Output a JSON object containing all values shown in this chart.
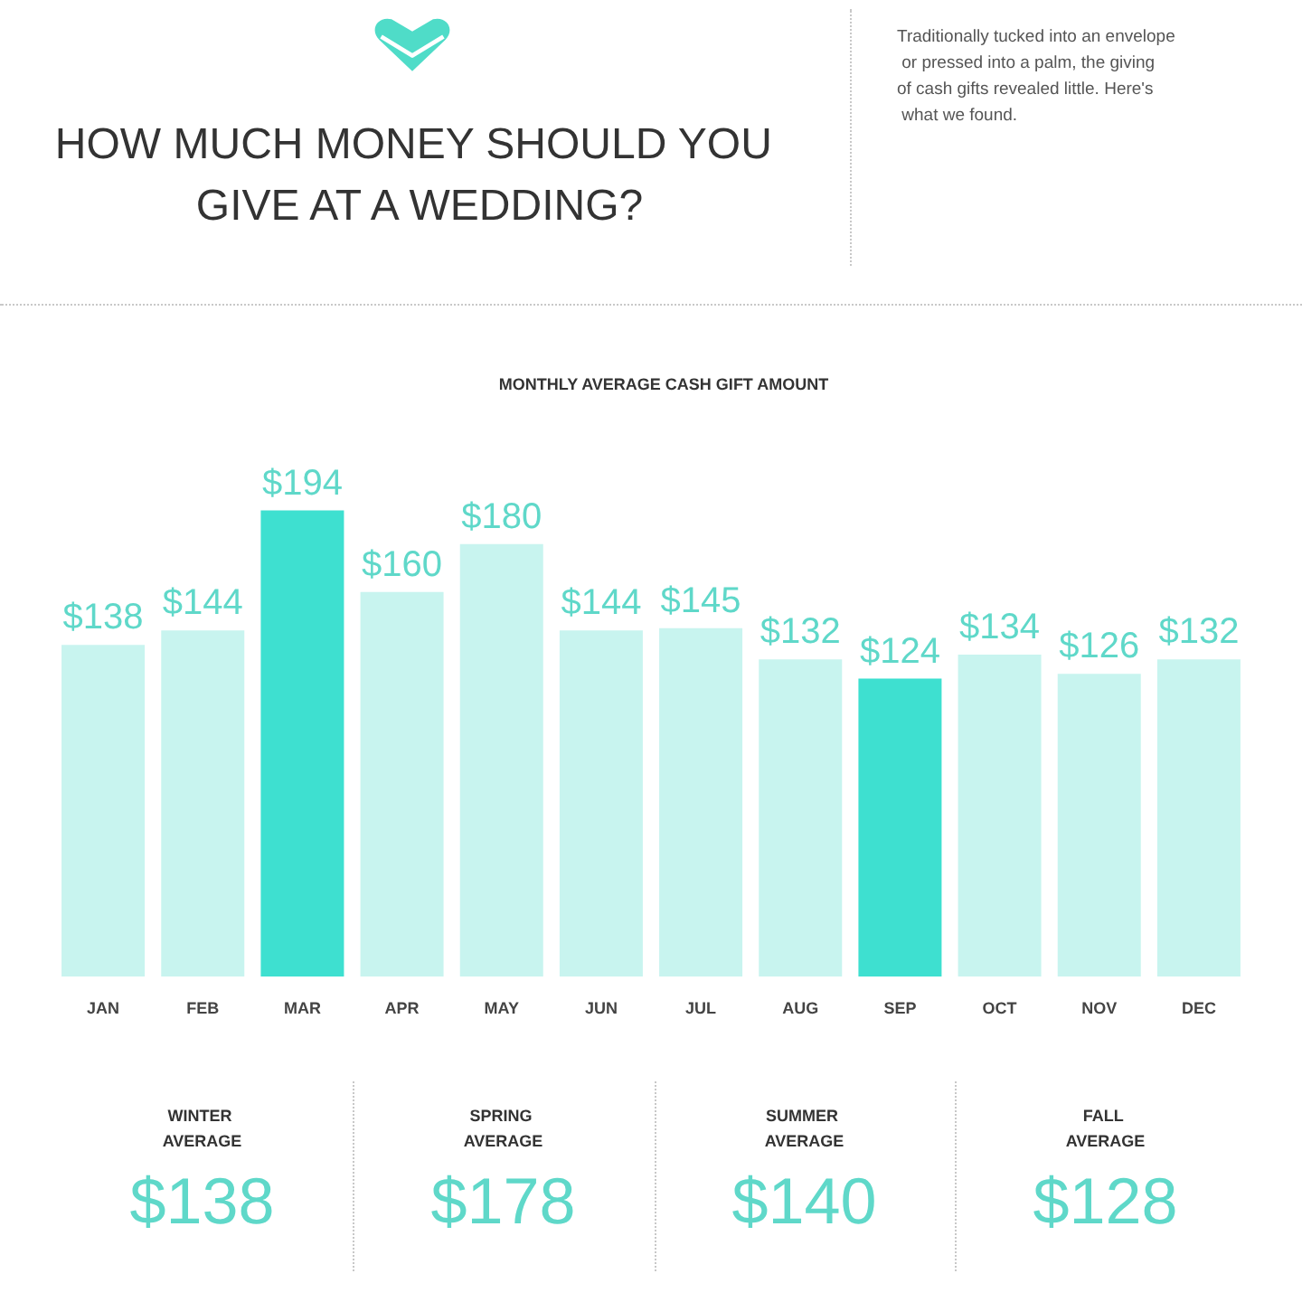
{
  "chart_data": {
    "type": "bar",
    "title": "HOW MUCH MONEY SHOULD YOU GIVE AT A WEDDING?",
    "subtitle": "MONTHLY AVERAGE CASH GIFT AMOUNT",
    "categories": [
      "JAN",
      "FEB",
      "MAR",
      "APR",
      "MAY",
      "JUN",
      "JUL",
      "AUG",
      "SEP",
      "OCT",
      "NOV",
      "DEC"
    ],
    "values": [
      138,
      144,
      194,
      160,
      180,
      144,
      145,
      132,
      124,
      134,
      126,
      132
    ],
    "value_labels": [
      "$138",
      "$144",
      "$194",
      "$160",
      "$180",
      "$144",
      "$145",
      "$132",
      "$124",
      "$134",
      "$126",
      "$132"
    ],
    "colors": [
      "#c8f4ef",
      "#c8f4ef",
      "#3ee0d0",
      "#c8f4ef",
      "#c8f4ef",
      "#c8f4ef",
      "#c8f4ef",
      "#c8f4ef",
      "#3ee0d0",
      "#c8f4ef",
      "#c8f4ef",
      "#c8f4ef"
    ],
    "tick_labels": "x",
    "annotations": [
      "Traditionally tucked into an envelope or pressed into a palm, the giving of cash gifts revealed little. Here's what we found.",
      "WINTER AVERAGE",
      "$138",
      "SPRING AVERAGE",
      "$178",
      "SUMMER AVERAGE",
      "$140",
      "FALL AVERAGE",
      "$128"
    ]
  }
}
